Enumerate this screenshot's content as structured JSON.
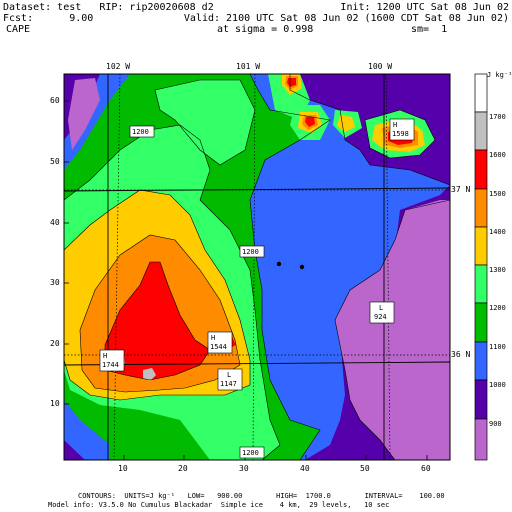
{
  "header": {
    "line1_left": "Dataset: test   RIP: rip20020608 d2",
    "line1_right": "Init: 1200 UTC Sat 08 Jun 02",
    "line2_left": "Fcst:      9.00",
    "line2_right": "Valid: 2100 UTC Sat 08 Jun 02 (1600 CDT Sat 08 Jun 02)",
    "line3_left": "CAPE",
    "line3_mid": "at sigma = 0.998",
    "line3_right": "sm=  1"
  },
  "longitude_labels": [
    "102 W",
    "101 W",
    "100 W"
  ],
  "latitude_labels": [
    "37 N",
    "36 N"
  ],
  "x_ticks": [
    "10",
    "20",
    "30",
    "40",
    "50",
    "60"
  ],
  "y_ticks": [
    "10",
    "20",
    "30",
    "40",
    "50",
    "60"
  ],
  "field_labels": [
    {
      "type": "plain",
      "text": "1200",
      "id": "1200-nw"
    },
    {
      "type": "plain",
      "text": "1200",
      "id": "1200-center"
    },
    {
      "type": "plain",
      "text": "1200",
      "id": "1200-south"
    },
    {
      "type": "high",
      "letter": "H",
      "value": "1744",
      "id": "high-1744"
    },
    {
      "type": "high",
      "letter": "H",
      "value": "1544",
      "id": "high-1544"
    },
    {
      "type": "high",
      "letter": "H",
      "value": "1598",
      "id": "high-1598"
    },
    {
      "type": "low",
      "letter": "L",
      "value": "1147",
      "id": "low-1147"
    },
    {
      "type": "low",
      "letter": "L",
      "value": "924",
      "id": "low-924"
    }
  ],
  "legend": {
    "units": "J kg⁻¹",
    "levels": [
      "1700",
      "1600",
      "1500",
      "1400",
      "1300",
      "1200",
      "1100",
      "1000",
      "900"
    ],
    "colors": [
      "#ffffff",
      "#c0c0c0",
      "#ff0000",
      "#ff8c00",
      "#ffcc00",
      "#33ff66",
      "#00bb00",
      "#3366ff",
      "#5500aa",
      "#bb66cc"
    ]
  },
  "colors": {
    "below_900": "#bb66cc",
    "c900_1000": "#5500aa",
    "c1000_1100": "#3366ff",
    "c1100_1200": "#00bb00",
    "c1200_1300": "#33ff66",
    "c1300_1400": "#ffcc00",
    "c1400_1500": "#ff8c00",
    "c1500_1600": "#ff0000",
    "c1600_1700": "#c0c0c0",
    "above_1700": "#ffffff"
  },
  "footer": {
    "line1": "CONTOURS:  UNITS=J kg⁻¹   LOW=   900.00        HIGH=  1700.0        INTERVAL=    100.00",
    "line2": "Model info: V3.5.0 No Cumulus Blackadar  Simple ice    4 km,  29 levels,   10 sec"
  }
}
